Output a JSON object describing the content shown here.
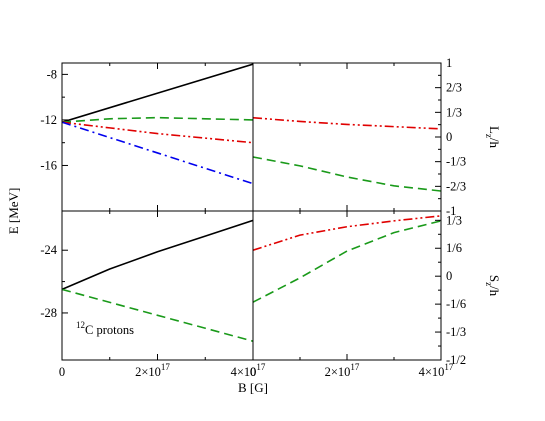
{
  "chart_data": [
    {
      "panel": "energy-upper",
      "type": "line",
      "ylabel": "E [MeV]",
      "xlim": [
        0,
        4e+17
      ],
      "ylim": [
        -20,
        -7
      ],
      "yticks": [
        "-8",
        "-12",
        "-16"
      ],
      "ytick_values": [
        -8,
        -12,
        -16
      ],
      "series": [
        {
          "color": "#000000",
          "dash": "solid",
          "x": [
            0,
            4e+17
          ],
          "y": [
            -12.2,
            -7.1
          ]
        },
        {
          "color": "#1a9a1a",
          "dash": "dash",
          "x": [
            0,
            1e+17,
            2e+17,
            3e+17,
            4e+17
          ],
          "y": [
            -12.2,
            -11.9,
            -11.8,
            -11.9,
            -12.0
          ]
        },
        {
          "color": "#e00000",
          "dash": "dashdotdot",
          "x": [
            0,
            1e+17,
            2e+17,
            3e+17,
            4e+17
          ],
          "y": [
            -12.2,
            -12.7,
            -13.2,
            -13.6,
            -14.0
          ]
        },
        {
          "color": "#0000ee",
          "dash": "dashdot",
          "x": [
            0,
            4e+17
          ],
          "y": [
            -12.2,
            -17.6
          ]
        }
      ]
    },
    {
      "panel": "energy-lower",
      "type": "line",
      "xlim": [
        0,
        4e+17
      ],
      "ylim": [
        -31,
        -21.5
      ],
      "yticks": [
        "-24",
        "-28"
      ],
      "ytick_values": [
        -24,
        -28
      ],
      "xticks": [
        "0",
        "2×10",
        "4×10"
      ],
      "xtick_exponent": "17",
      "xtick_values": [
        0,
        2e+17,
        4e+17
      ],
      "annotation": {
        "super": "12",
        "text": "C protons"
      },
      "series": [
        {
          "color": "#000000",
          "dash": "solid",
          "x": [
            0,
            1e+17,
            2e+17,
            3e+17,
            4e+17
          ],
          "y": [
            -26.5,
            -25.2,
            -24.1,
            -23.1,
            -22.1
          ]
        },
        {
          "color": "#1a9a1a",
          "dash": "dash",
          "x": [
            0,
            4e+17
          ],
          "y": [
            -26.5,
            -29.8
          ]
        }
      ]
    },
    {
      "panel": "Lz",
      "type": "line",
      "ylabel": "L",
      "ylabel_sub": "z",
      "ylabel_rest": "/h",
      "xlim": [
        0,
        4e+17
      ],
      "ylim": [
        -1,
        1
      ],
      "yticks": [
        "1",
        "2/3",
        "1/3",
        "0",
        "-1/3",
        "-2/3",
        "-1"
      ],
      "ytick_values": [
        1,
        0.6667,
        0.3333,
        0,
        -0.3333,
        -0.6667,
        -1
      ],
      "series": [
        {
          "color": "#e00000",
          "dash": "dashdotdot",
          "x": [
            0,
            1e+17,
            2e+17,
            3e+17,
            4e+17
          ],
          "y": [
            0.26,
            0.21,
            0.17,
            0.14,
            0.11
          ]
        },
        {
          "color": "#1a9a1a",
          "dash": "dash",
          "x": [
            0,
            1e+17,
            2e+17,
            3e+17,
            4e+17
          ],
          "y": [
            -0.27,
            -0.39,
            -0.54,
            -0.66,
            -0.73
          ]
        }
      ]
    },
    {
      "panel": "Sz",
      "type": "line",
      "ylabel": "S",
      "ylabel_sub": "z",
      "ylabel_rest": "/h",
      "xlabel": "B [G]",
      "xlim": [
        0,
        4e+17
      ],
      "ylim": [
        -0.5,
        0.3889
      ],
      "yticks": [
        "1/3",
        "1/6",
        "0",
        "-1/6",
        "-1/3",
        "-1/2"
      ],
      "ytick_values": [
        0.3333,
        0.1667,
        0,
        -0.1667,
        -0.3333,
        -0.5
      ],
      "xticks": [
        "0",
        "2×10",
        "4×10"
      ],
      "xtick_exponent": "17",
      "xtick_values": [
        0,
        2e+17,
        4e+17
      ],
      "series": [
        {
          "color": "#e00000",
          "dash": "dashdotdot",
          "x": [
            0,
            1e+17,
            2e+17,
            3e+17,
            4e+17
          ],
          "y": [
            0.155,
            0.245,
            0.295,
            0.33,
            0.36
          ]
        },
        {
          "color": "#1a9a1a",
          "dash": "dash",
          "x": [
            0,
            1e+17,
            2e+17,
            3e+17,
            4e+17
          ],
          "y": [
            -0.155,
            -0.01,
            0.15,
            0.26,
            0.33
          ]
        }
      ]
    }
  ]
}
